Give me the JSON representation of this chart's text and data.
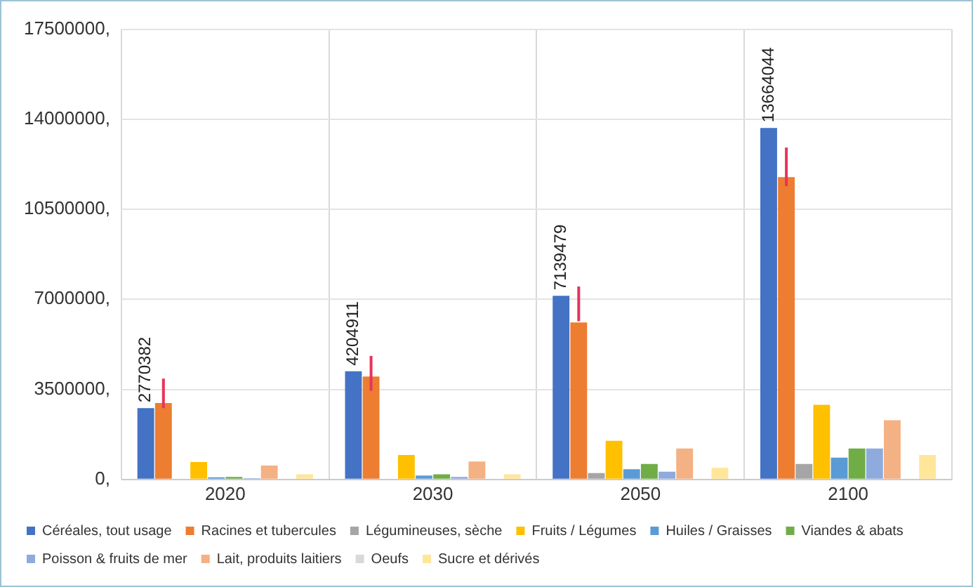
{
  "chart_data": {
    "type": "bar",
    "categories": [
      "2020",
      "2030",
      "2050",
      "2100"
    ],
    "series": [
      {
        "name": "Céréales, tout usage",
        "color": "#4472c4",
        "values": [
          2770382,
          4204911,
          7139479,
          13664044
        ],
        "value_labels": [
          "2770382",
          "4204911",
          "7139479",
          "13664044"
        ]
      },
      {
        "name": "Racines et tubercules",
        "color": "#ed7d31",
        "values": [
          2970000,
          4000000,
          6100000,
          11750000
        ],
        "errors": [
          [
            2770000,
            3920000
          ],
          [
            3450000,
            4800000
          ],
          [
            6150000,
            7500000
          ],
          [
            11400000,
            12900000
          ]
        ]
      },
      {
        "name": "Légumineuses, sèche",
        "color": "#a5a5a5",
        "values": [
          null,
          null,
          250000,
          600000
        ]
      },
      {
        "name": "Fruits / Légumes",
        "color": "#ffc000",
        "values": [
          680000,
          950000,
          1500000,
          2900000
        ]
      },
      {
        "name": "Huiles / Graisses",
        "color": "#5b9bd5",
        "values": [
          80000,
          150000,
          400000,
          850000
        ]
      },
      {
        "name": "Viandes & abats",
        "color": "#70ad47",
        "values": [
          100000,
          200000,
          600000,
          1200000
        ]
      },
      {
        "name": "Poisson & fruits de mer",
        "color": "#8faadc",
        "values": [
          50000,
          100000,
          300000,
          1200000
        ]
      },
      {
        "name": "Lait, produits laitiers",
        "color": "#f4b183",
        "values": [
          540000,
          700000,
          1200000,
          2300000
        ]
      },
      {
        "name": "Oeufs",
        "color": "#d9d9d9",
        "values": [
          null,
          30000,
          null,
          null
        ]
      },
      {
        "name": "Sucre et dérivés",
        "color": "#ffe699",
        "values": [
          200000,
          200000,
          450000,
          950000
        ]
      }
    ],
    "ylim": [
      0,
      17500000
    ],
    "yticks": [
      {
        "value": 0,
        "label": "0,"
      },
      {
        "value": 3500000,
        "label": "3500000,"
      },
      {
        "value": 7000000,
        "label": "7000000,"
      },
      {
        "value": 10500000,
        "label": "10500000,"
      },
      {
        "value": 14000000,
        "label": "14000000,"
      },
      {
        "value": 17500000,
        "label": "17500000,"
      }
    ],
    "grid": true,
    "legend": "bottom"
  }
}
